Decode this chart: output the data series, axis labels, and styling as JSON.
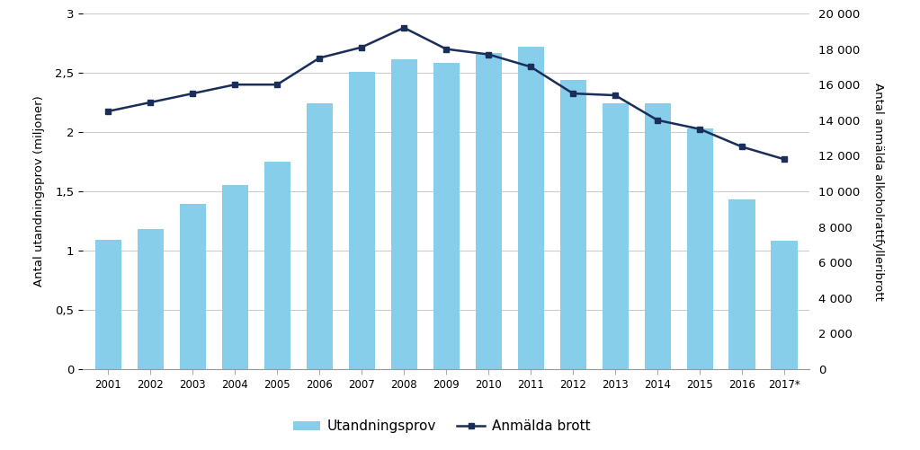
{
  "years": [
    "2001",
    "2002",
    "2003",
    "2004",
    "2005",
    "2006",
    "2007",
    "2008",
    "2009",
    "2010",
    "2011",
    "2012",
    "2013",
    "2014",
    "2015",
    "2016",
    "2017*"
  ],
  "bar_values": [
    1.09,
    1.18,
    1.39,
    1.55,
    1.75,
    2.24,
    2.51,
    2.61,
    2.58,
    2.67,
    2.72,
    2.44,
    2.24,
    2.24,
    2.03,
    1.43,
    1.08
  ],
  "line_values": [
    14500,
    15000,
    15500,
    16000,
    16000,
    17500,
    18100,
    19200,
    18000,
    17700,
    17000,
    15500,
    15400,
    14000,
    13500,
    12500,
    11800
  ],
  "bar_color": "#87CEEB",
  "line_color": "#1a2e5a",
  "ylabel_left": "Antal utandningsprov (miljoner)",
  "ylabel_right": "Antal anmälda alkoholrattfylleribrott",
  "ylim_left": [
    0,
    3
  ],
  "ylim_right": [
    0,
    20000
  ],
  "yticks_left": [
    0,
    0.5,
    1.0,
    1.5,
    2.0,
    2.5,
    3.0
  ],
  "yticks_right": [
    0,
    2000,
    4000,
    6000,
    8000,
    10000,
    12000,
    14000,
    16000,
    18000,
    20000
  ],
  "ytick_labels_left": [
    "0",
    "0,5",
    "1",
    "1,5",
    "2",
    "2,5",
    "3"
  ],
  "ytick_labels_right": [
    "0",
    "2 000",
    "4 000",
    "6 000",
    "8 000",
    "10 000",
    "12 000",
    "14 000",
    "16 000",
    "18 000",
    "20 000"
  ],
  "legend_bar_label": "Utandningsprov",
  "legend_line_label": "Anmälda brott",
  "background_color": "#ffffff",
  "grid_color": "#cccccc"
}
